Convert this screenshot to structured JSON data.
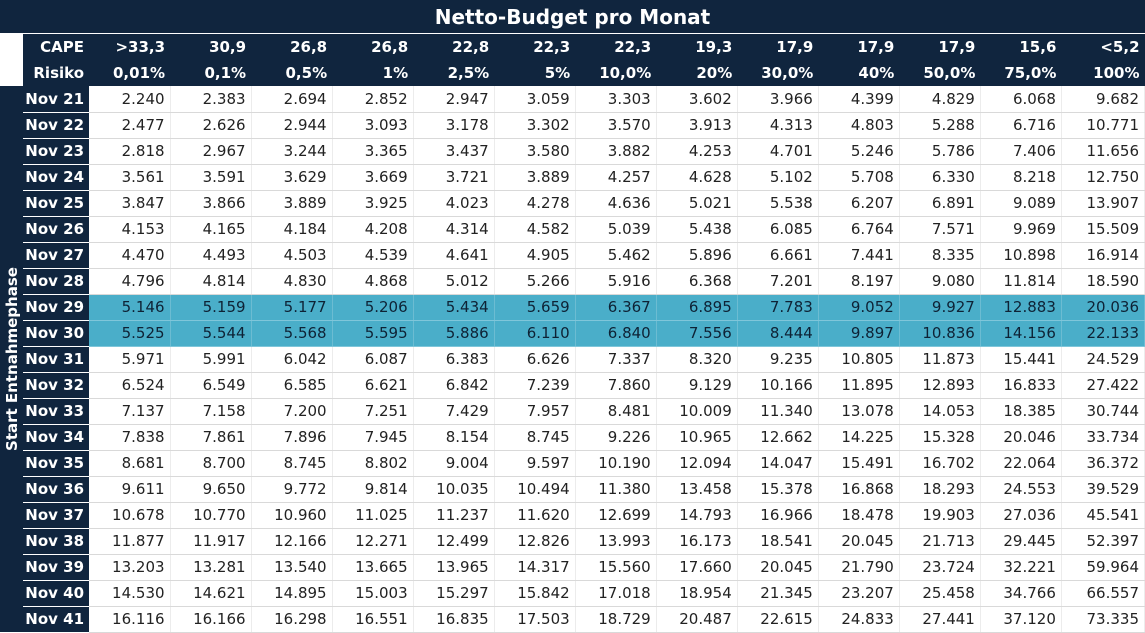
{
  "title": "Netto-Budget pro Monat",
  "side_label": "Start Entnahmephase",
  "colors": {
    "header_bg": "#10253e",
    "header_text": "#ffffff",
    "highlight_bg": "#4aaec9",
    "cell_bg": "#ffffff"
  },
  "cape_label": "CAPE",
  "risk_label": "Risiko",
  "cape": [
    ">33,3",
    "30,9",
    "26,8",
    "26,8",
    "22,8",
    "22,3",
    "22,3",
    "19,3",
    "17,9",
    "17,9",
    "17,9",
    "15,6",
    "<5,2"
  ],
  "risk": [
    "0,01%",
    "0,1%",
    "0,5%",
    "1%",
    "2,5%",
    "5%",
    "10,0%",
    "20%",
    "30,0%",
    "40%",
    "50,0%",
    "75,0%",
    "100%"
  ],
  "highlighted_rows": [
    "Nov 29",
    "Nov 30"
  ],
  "rows": [
    {
      "label": "Nov 21",
      "values": [
        "2.240",
        "2.383",
        "2.694",
        "2.852",
        "2.947",
        "3.059",
        "3.303",
        "3.602",
        "3.966",
        "4.399",
        "4.829",
        "6.068",
        "9.682"
      ]
    },
    {
      "label": "Nov 22",
      "values": [
        "2.477",
        "2.626",
        "2.944",
        "3.093",
        "3.178",
        "3.302",
        "3.570",
        "3.913",
        "4.313",
        "4.803",
        "5.288",
        "6.716",
        "10.771"
      ]
    },
    {
      "label": "Nov 23",
      "values": [
        "2.818",
        "2.967",
        "3.244",
        "3.365",
        "3.437",
        "3.580",
        "3.882",
        "4.253",
        "4.701",
        "5.246",
        "5.786",
        "7.406",
        "11.656"
      ]
    },
    {
      "label": "Nov 24",
      "values": [
        "3.561",
        "3.591",
        "3.629",
        "3.669",
        "3.721",
        "3.889",
        "4.257",
        "4.628",
        "5.102",
        "5.708",
        "6.330",
        "8.218",
        "12.750"
      ]
    },
    {
      "label": "Nov 25",
      "values": [
        "3.847",
        "3.866",
        "3.889",
        "3.925",
        "4.023",
        "4.278",
        "4.636",
        "5.021",
        "5.538",
        "6.207",
        "6.891",
        "9.089",
        "13.907"
      ]
    },
    {
      "label": "Nov 26",
      "values": [
        "4.153",
        "4.165",
        "4.184",
        "4.208",
        "4.314",
        "4.582",
        "5.039",
        "5.438",
        "6.085",
        "6.764",
        "7.571",
        "9.969",
        "15.509"
      ]
    },
    {
      "label": "Nov 27",
      "values": [
        "4.470",
        "4.493",
        "4.503",
        "4.539",
        "4.641",
        "4.905",
        "5.462",
        "5.896",
        "6.661",
        "7.441",
        "8.335",
        "10.898",
        "16.914"
      ]
    },
    {
      "label": "Nov 28",
      "values": [
        "4.796",
        "4.814",
        "4.830",
        "4.868",
        "5.012",
        "5.266",
        "5.916",
        "6.368",
        "7.201",
        "8.197",
        "9.080",
        "11.814",
        "18.590"
      ]
    },
    {
      "label": "Nov 29",
      "values": [
        "5.146",
        "5.159",
        "5.177",
        "5.206",
        "5.434",
        "5.659",
        "6.367",
        "6.895",
        "7.783",
        "9.052",
        "9.927",
        "12.883",
        "20.036"
      ]
    },
    {
      "label": "Nov 30",
      "values": [
        "5.525",
        "5.544",
        "5.568",
        "5.595",
        "5.886",
        "6.110",
        "6.840",
        "7.556",
        "8.444",
        "9.897",
        "10.836",
        "14.156",
        "22.133"
      ]
    },
    {
      "label": "Nov 31",
      "values": [
        "5.971",
        "5.991",
        "6.042",
        "6.087",
        "6.383",
        "6.626",
        "7.337",
        "8.320",
        "9.235",
        "10.805",
        "11.873",
        "15.441",
        "24.529"
      ]
    },
    {
      "label": "Nov 32",
      "values": [
        "6.524",
        "6.549",
        "6.585",
        "6.621",
        "6.842",
        "7.239",
        "7.860",
        "9.129",
        "10.166",
        "11.895",
        "12.893",
        "16.833",
        "27.422"
      ]
    },
    {
      "label": "Nov 33",
      "values": [
        "7.137",
        "7.158",
        "7.200",
        "7.251",
        "7.429",
        "7.957",
        "8.481",
        "10.009",
        "11.340",
        "13.078",
        "14.053",
        "18.385",
        "30.744"
      ]
    },
    {
      "label": "Nov 34",
      "values": [
        "7.838",
        "7.861",
        "7.896",
        "7.945",
        "8.154",
        "8.745",
        "9.226",
        "10.965",
        "12.662",
        "14.225",
        "15.328",
        "20.046",
        "33.734"
      ]
    },
    {
      "label": "Nov 35",
      "values": [
        "8.681",
        "8.700",
        "8.745",
        "8.802",
        "9.004",
        "9.597",
        "10.190",
        "12.094",
        "14.047",
        "15.491",
        "16.702",
        "22.064",
        "36.372"
      ]
    },
    {
      "label": "Nov 36",
      "values": [
        "9.611",
        "9.650",
        "9.772",
        "9.814",
        "10.035",
        "10.494",
        "11.380",
        "13.458",
        "15.378",
        "16.868",
        "18.293",
        "24.553",
        "39.529"
      ]
    },
    {
      "label": "Nov 37",
      "values": [
        "10.678",
        "10.770",
        "10.960",
        "11.025",
        "11.237",
        "11.620",
        "12.699",
        "14.793",
        "16.966",
        "18.478",
        "19.903",
        "27.036",
        "45.541"
      ]
    },
    {
      "label": "Nov 38",
      "values": [
        "11.877",
        "11.917",
        "12.166",
        "12.271",
        "12.499",
        "12.826",
        "13.993",
        "16.173",
        "18.541",
        "20.045",
        "21.713",
        "29.445",
        "52.397"
      ]
    },
    {
      "label": "Nov 39",
      "values": [
        "13.203",
        "13.281",
        "13.540",
        "13.665",
        "13.965",
        "14.317",
        "15.560",
        "17.660",
        "20.045",
        "21.790",
        "23.724",
        "32.221",
        "59.964"
      ]
    },
    {
      "label": "Nov 40",
      "values": [
        "14.530",
        "14.621",
        "14.895",
        "15.003",
        "15.297",
        "15.842",
        "17.018",
        "18.954",
        "21.345",
        "23.207",
        "25.458",
        "34.766",
        "66.557"
      ]
    },
    {
      "label": "Nov 41",
      "values": [
        "16.116",
        "16.166",
        "16.298",
        "16.551",
        "16.835",
        "17.503",
        "18.729",
        "20.487",
        "22.615",
        "24.833",
        "27.441",
        "37.120",
        "73.335"
      ]
    }
  ]
}
